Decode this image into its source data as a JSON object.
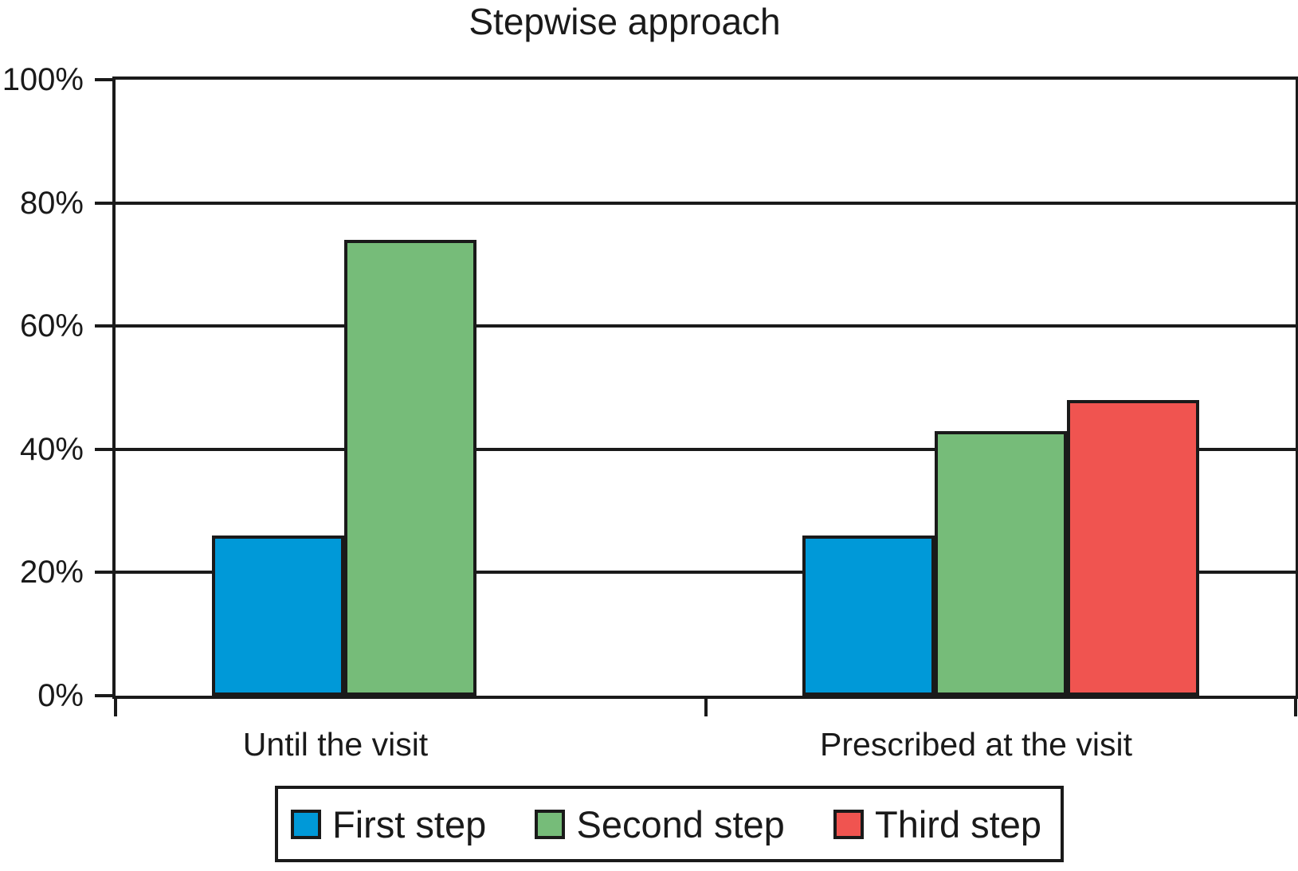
{
  "title": "Stepwise approach",
  "chart_data": {
    "type": "bar",
    "title": "Stepwise approach",
    "categories": [
      "Until the visit",
      "Prescribed at the visit"
    ],
    "series": [
      {
        "name": "First step",
        "color": "#0099D8",
        "values": [
          26,
          26
        ]
      },
      {
        "name": "Second step",
        "color": "#76BC79",
        "values": [
          74,
          43
        ]
      },
      {
        "name": "Third step",
        "color": "#F05450",
        "values": [
          null,
          48
        ]
      }
    ],
    "xlabel": "",
    "ylabel": "",
    "ylim": [
      0,
      100
    ],
    "yticks": [
      {
        "value": 0,
        "label": "0%"
      },
      {
        "value": 20,
        "label": "20%"
      },
      {
        "value": 40,
        "label": "40%"
      },
      {
        "value": 60,
        "label": "60%"
      },
      {
        "value": 80,
        "label": "80%"
      },
      {
        "value": 100,
        "label": "100%"
      }
    ],
    "grid": true,
    "legend_position": "bottom",
    "bar_border_color": "#1a1a1a",
    "axis_color": "#1a1a1a",
    "background_color": "#ffffff"
  }
}
